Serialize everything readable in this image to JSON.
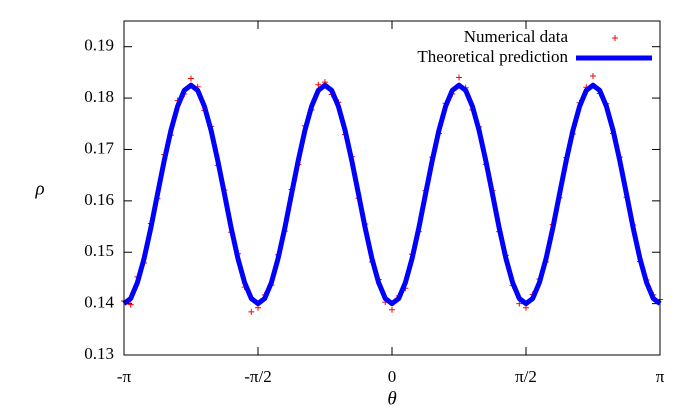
{
  "chart_data": {
    "type": "line",
    "xlabel": "θ",
    "ylabel": "ρ",
    "xlim": [
      -3.1416,
      3.1416
    ],
    "ylim": [
      0.13,
      0.195
    ],
    "xticks": [
      {
        "value": -3.1416,
        "label": "-π"
      },
      {
        "value": -1.5708,
        "label": "-π/2"
      },
      0,
      {
        "value": 1.5708,
        "label": "π/2"
      },
      {
        "value": 3.1416,
        "label": "π"
      }
    ],
    "yticks": [
      0.13,
      0.14,
      0.15,
      0.16,
      0.17,
      0.18,
      0.19
    ],
    "legend": "top-right",
    "x": [
      -3.1416,
      -3.0631,
      -2.9845,
      -2.906,
      -2.8274,
      -2.7489,
      -2.6704,
      -2.5918,
      -2.5133,
      -2.4347,
      -2.3562,
      -2.2777,
      -2.1991,
      -2.1206,
      -2.042,
      -1.9635,
      -1.885,
      -1.8064,
      -1.7279,
      -1.6493,
      -1.5708,
      -1.4923,
      -1.4137,
      -1.3352,
      -1.2566,
      -1.1781,
      -1.0996,
      -1.021,
      -0.9425,
      -0.8639,
      -0.7854,
      -0.7069,
      -0.6283,
      -0.5498,
      -0.4712,
      -0.3927,
      -0.3142,
      -0.2356,
      -0.1571,
      -0.0785,
      0,
      0.0785,
      0.1571,
      0.2356,
      0.3142,
      0.3927,
      0.4712,
      0.5498,
      0.6283,
      0.7069,
      0.7854,
      0.8639,
      0.9425,
      1.021,
      1.0996,
      1.1781,
      1.2566,
      1.3352,
      1.4137,
      1.4923,
      1.5708,
      1.6493,
      1.7279,
      1.8064,
      1.885,
      1.9635,
      2.042,
      2.1206,
      2.1991,
      2.2777,
      2.3562,
      2.4347,
      2.5133,
      2.5918,
      2.6704,
      2.7489,
      2.8274,
      2.906,
      2.9845,
      3.0631,
      3.1416
    ],
    "series": [
      {
        "name": "Numerical data",
        "type": "scatter",
        "color": "#ff0000",
        "values": [
          0.1405,
          0.1398,
          0.1452,
          0.1479,
          0.1556,
          0.1604,
          0.169,
          0.1728,
          0.1795,
          0.1808,
          0.1838,
          0.1822,
          0.1776,
          0.1745,
          0.1669,
          0.1621,
          0.1539,
          0.1497,
          0.1432,
          0.1384,
          0.1392,
          0.1417,
          0.1436,
          0.1495,
          0.1541,
          0.1622,
          0.1671,
          0.1746,
          0.1777,
          0.1826,
          0.1831,
          0.1807,
          0.1792,
          0.1729,
          0.1686,
          0.1605,
          0.1555,
          0.1481,
          0.1447,
          0.1403,
          0.1388,
          0.1415,
          0.143,
          0.1496,
          0.154,
          0.162,
          0.1685,
          0.1731,
          0.179,
          0.1808,
          0.184,
          0.182,
          0.1777,
          0.1744,
          0.1671,
          0.162,
          0.154,
          0.1494,
          0.1435,
          0.14,
          0.1392,
          0.1418,
          0.1448,
          0.1481,
          0.1554,
          0.1606,
          0.1684,
          0.173,
          0.1791,
          0.1821,
          0.1843,
          0.1809,
          0.1789,
          0.1731,
          0.1685,
          0.1607,
          0.1553,
          0.1482,
          0.1446,
          0.1417,
          0.1408
        ]
      },
      {
        "name": "Theoretical prediction",
        "type": "line",
        "color": "#0000ff",
        "values": [
          0.14,
          0.141,
          0.1441,
          0.1488,
          0.1547,
          0.1613,
          0.1678,
          0.1737,
          0.1784,
          0.1815,
          0.1825,
          0.1815,
          0.1784,
          0.1737,
          0.1678,
          0.1613,
          0.1547,
          0.1488,
          0.1441,
          0.141,
          0.14,
          0.141,
          0.1441,
          0.1488,
          0.1547,
          0.1613,
          0.1678,
          0.1737,
          0.1784,
          0.1815,
          0.1825,
          0.1815,
          0.1784,
          0.1737,
          0.1678,
          0.1613,
          0.1547,
          0.1488,
          0.1441,
          0.141,
          0.14,
          0.141,
          0.1441,
          0.1488,
          0.1547,
          0.1613,
          0.1678,
          0.1737,
          0.1784,
          0.1815,
          0.1825,
          0.1815,
          0.1784,
          0.1737,
          0.1678,
          0.1613,
          0.1547,
          0.1488,
          0.1441,
          0.141,
          0.14,
          0.141,
          0.1441,
          0.1488,
          0.1547,
          0.1613,
          0.1678,
          0.1737,
          0.1784,
          0.1815,
          0.1825,
          0.1815,
          0.1784,
          0.1737,
          0.1678,
          0.1613,
          0.1547,
          0.1488,
          0.1441,
          0.141,
          0.14
        ]
      }
    ]
  }
}
